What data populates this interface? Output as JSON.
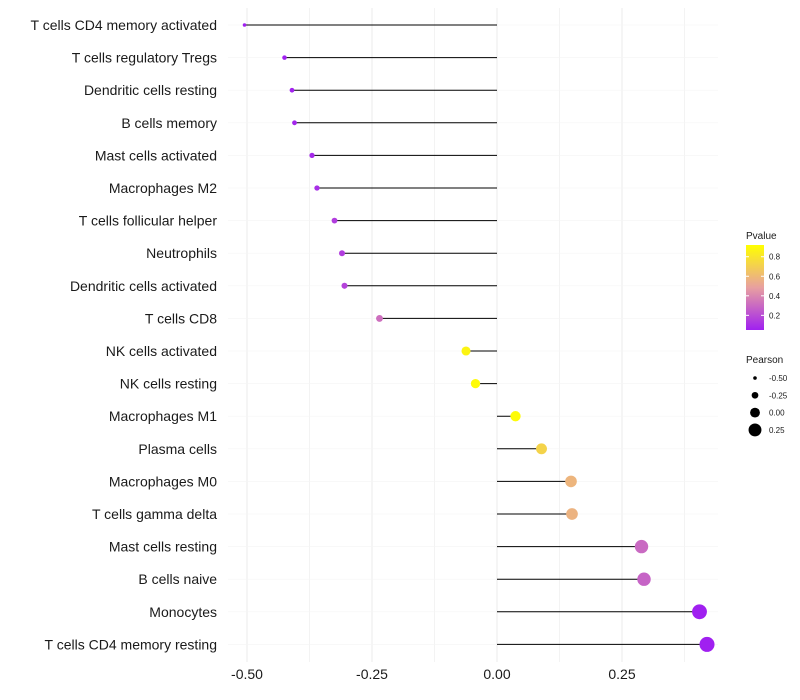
{
  "chart_data": {
    "type": "lollipop",
    "title": "",
    "xlabel": "",
    "ylabel": "",
    "xlim": [
      -0.55,
      0.45
    ],
    "xticks": [
      -0.5,
      -0.25,
      0.0,
      0.25
    ],
    "xtick_labels": [
      "-0.50",
      "-0.25",
      "0.00",
      "0.25"
    ],
    "grid": true,
    "categories": [
      "T cells CD4 memory activated",
      "T cells regulatory  Tregs",
      "Dendritic cells resting",
      "B cells memory",
      "Mast cells activated",
      "Macrophages M2",
      "T cells follicular helper",
      "Neutrophils",
      "Dendritic cells activated",
      "T cells CD8",
      "NK cells activated",
      "NK cells resting",
      "Macrophages M1",
      "Plasma cells",
      "Macrophages M0",
      "T cells gamma delta",
      "Mast cells resting",
      "B cells naive",
      "Monocytes",
      "T cells CD4 memory resting"
    ],
    "pearson": [
      -0.505,
      -0.425,
      -0.41,
      -0.405,
      -0.37,
      -0.36,
      -0.325,
      -0.31,
      -0.305,
      -0.235,
      -0.062,
      -0.043,
      0.037,
      0.089,
      0.148,
      0.15,
      0.289,
      0.294,
      0.405,
      0.42
    ],
    "pvalue": [
      0.0,
      0.05,
      0.06,
      0.07,
      0.08,
      0.1,
      0.15,
      0.15,
      0.17,
      0.32,
      0.87,
      0.9,
      0.9,
      0.72,
      0.58,
      0.57,
      0.3,
      0.28,
      0.02,
      0.0
    ],
    "legend": {
      "color": {
        "title": "Pvalue",
        "range": [
          0.05,
          0.92
        ],
        "ticks": [
          0.2,
          0.4,
          0.6,
          0.8
        ],
        "tick_labels": [
          "0.2",
          "0.4",
          "0.6",
          "0.8"
        ],
        "low_color": "#a020f0",
        "mid_color": "#e8a0a0",
        "high_color": "#ffff00"
      },
      "size": {
        "title": "Pearson",
        "values": [
          -0.5,
          -0.25,
          0.0,
          0.25
        ],
        "labels": [
          "-0.50",
          "-0.25",
          "0.00",
          "0.25"
        ]
      },
      "position": "right"
    }
  }
}
